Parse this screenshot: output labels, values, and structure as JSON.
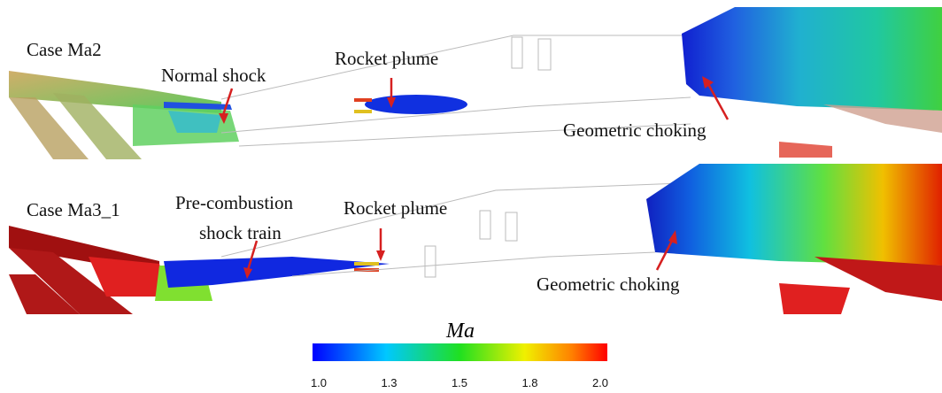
{
  "panels": [
    {
      "case": "Case Ma2",
      "labels": [
        "Normal shock",
        "Rocket plume",
        "Geometric choking"
      ]
    },
    {
      "case": "Case Ma3_1",
      "labels": [
        "Pre-combustion",
        "shock train",
        "Rocket plume",
        "Geometric choking"
      ]
    }
  ],
  "colorbar": {
    "title": "Ma",
    "ticks": [
      "1.0",
      "1.3",
      "1.5",
      "1.8",
      "2.0"
    ]
  }
}
